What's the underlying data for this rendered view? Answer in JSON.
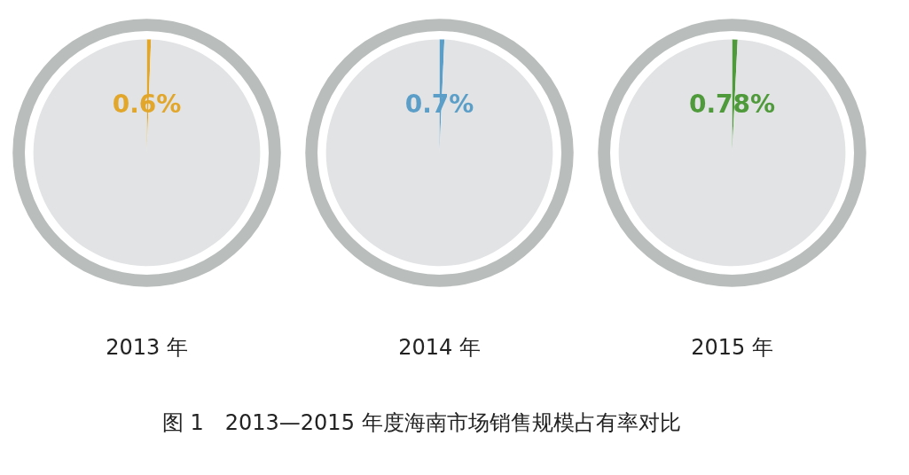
{
  "chart_data": [
    {
      "type": "pie",
      "title": "2013 年",
      "categories": [
        null,
        null
      ],
      "values": [
        0.6,
        99.4
      ],
      "colors": [
        "#e1a62a",
        "#e2e3e5"
      ],
      "value_labels": [
        "0.6%",
        null
      ]
    },
    {
      "type": "pie",
      "title": "2014 年",
      "categories": [
        null,
        null
      ],
      "values": [
        0.7,
        99.3
      ],
      "colors": [
        "#5b9fc8",
        "#e2e3e5"
      ],
      "value_labels": [
        "0.7%",
        null
      ],
      "annotations": [
        "图 1　2013—2015 年度海南市场销售规模占有率对比"
      ]
    },
    {
      "type": "pie",
      "title": "2015 年",
      "categories": [
        null,
        null
      ],
      "values": [
        0.78,
        99.22
      ],
      "colors": [
        "#4f9a3a",
        "#e2e3e5"
      ],
      "value_labels": [
        "0.78%",
        null
      ]
    }
  ]
}
